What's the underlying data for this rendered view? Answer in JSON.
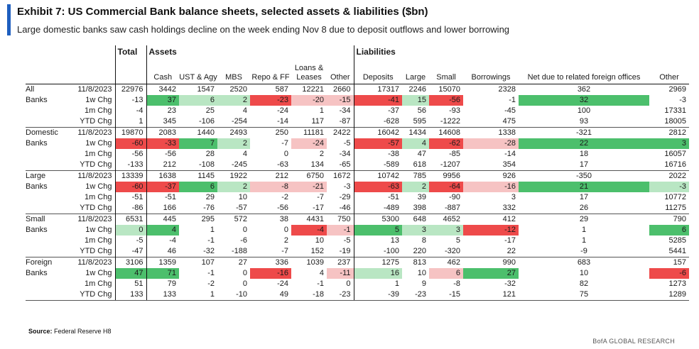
{
  "title": "Exhibit 7: US Commercial Bank balance sheets, selected assets & liabilities ($bn)",
  "subtitle": "Large domestic banks saw cash holdings decline on the week ending Nov 8 due to deposit outflows and lower borrowing",
  "headers": {
    "total": "Total",
    "assets": "Assets",
    "liabilities": "Liabilities",
    "columns": [
      "Cash",
      "UST & Agy",
      "MBS",
      "Repo & FF",
      "Loans & Leases",
      "Other",
      "Deposits",
      "Large",
      "Small",
      "Borrowings",
      "Net due to related foreign offices",
      "Other"
    ]
  },
  "colors": {
    "green_strong": "#4cbf6c",
    "green_light": "#b9e6c3",
    "red_strong": "#ee4a4a",
    "red_light": "#f6c3c3",
    "accent_bar": "#1f5fbf"
  },
  "groups": [
    {
      "label_line1": "All",
      "label_line2": "Banks",
      "rows": [
        {
          "label": "11/8/2023",
          "values": [
            "22976",
            "3442",
            "1547",
            "2520",
            "587",
            "12221",
            "2660",
            "17317",
            "2246",
            "15070",
            "2328",
            "362",
            "2969"
          ],
          "fills": [
            "",
            "",
            "",
            "",
            "",
            "",
            "",
            "",
            "",
            "",
            "",
            "",
            ""
          ]
        },
        {
          "label": "1w Chg",
          "values": [
            "-13",
            "37",
            "6",
            "2",
            "-23",
            "-20",
            "-15",
            "-41",
            "15",
            "-56",
            "-1",
            "32",
            "-3"
          ],
          "fills": [
            "",
            "gs",
            "gl",
            "gl",
            "rs",
            "rl",
            "rl",
            "rs",
            "gl",
            "rs",
            "",
            "gs",
            ""
          ]
        },
        {
          "label": "1m Chg",
          "values": [
            "-4",
            "23",
            "25",
            "4",
            "-24",
            "1",
            "-34",
            "-37",
            "56",
            "-93",
            "-45",
            "100",
            "17331"
          ],
          "fills": [
            "",
            "",
            "",
            "",
            "",
            "",
            "",
            "",
            "",
            "",
            "",
            "",
            ""
          ]
        },
        {
          "label": "YTD Chg",
          "values": [
            "1",
            "345",
            "-106",
            "-254",
            "-14",
            "117",
            "-87",
            "-628",
            "595",
            "-1222",
            "475",
            "93",
            "18005"
          ],
          "fills": [
            "",
            "",
            "",
            "",
            "",
            "",
            "",
            "",
            "",
            "",
            "",
            "",
            ""
          ]
        }
      ]
    },
    {
      "label_line1": "Domestic",
      "label_line2": "Banks",
      "rows": [
        {
          "label": "11/8/2023",
          "values": [
            "19870",
            "2083",
            "1440",
            "2493",
            "250",
            "11181",
            "2422",
            "16042",
            "1434",
            "14608",
            "1338",
            "-321",
            "2812"
          ],
          "fills": [
            "",
            "",
            "",
            "",
            "",
            "",
            "",
            "",
            "",
            "",
            "",
            "",
            ""
          ]
        },
        {
          "label": "1w Chg",
          "values": [
            "-60",
            "-33",
            "7",
            "2",
            "-7",
            "-24",
            "-5",
            "-57",
            "4",
            "-62",
            "-28",
            "22",
            "3"
          ],
          "fills": [
            "rs",
            "rs",
            "gs",
            "gl",
            "",
            "rl",
            "",
            "rs",
            "gl",
            "rs",
            "rl",
            "gs",
            "gs"
          ]
        },
        {
          "label": "1m Chg",
          "values": [
            "-56",
            "-56",
            "28",
            "4",
            "0",
            "2",
            "-34",
            "-38",
            "47",
            "-85",
            "-14",
            "18",
            "16057"
          ],
          "fills": [
            "",
            "",
            "",
            "",
            "",
            "",
            "",
            "",
            "",
            "",
            "",
            "",
            ""
          ]
        },
        {
          "label": "YTD Chg",
          "values": [
            "-133",
            "212",
            "-108",
            "-245",
            "-63",
            "134",
            "-65",
            "-589",
            "618",
            "-1207",
            "354",
            "17",
            "16716"
          ],
          "fills": [
            "",
            "",
            "",
            "",
            "",
            "",
            "",
            "",
            "",
            "",
            "",
            "",
            ""
          ]
        }
      ]
    },
    {
      "label_line1": "Large",
      "label_line2": "Banks",
      "rows": [
        {
          "label": "11/8/2023",
          "values": [
            "13339",
            "1638",
            "1145",
            "1922",
            "212",
            "6750",
            "1672",
            "10742",
            "785",
            "9956",
            "926",
            "-350",
            "2022"
          ],
          "fills": [
            "",
            "",
            "",
            "",
            "",
            "",
            "",
            "",
            "",
            "",
            "",
            "",
            ""
          ]
        },
        {
          "label": "1w Chg",
          "values": [
            "-60",
            "-37",
            "6",
            "2",
            "-8",
            "-21",
            "-3",
            "-63",
            "2",
            "-64",
            "-16",
            "21",
            "-3"
          ],
          "fills": [
            "rs",
            "rs",
            "gs",
            "gl",
            "rl",
            "rl",
            "",
            "rs",
            "gl",
            "rs",
            "rl",
            "gs",
            "gl"
          ]
        },
        {
          "label": "1m Chg",
          "values": [
            "-51",
            "-51",
            "29",
            "10",
            "-2",
            "-7",
            "-29",
            "-51",
            "39",
            "-90",
            "3",
            "17",
            "10772"
          ],
          "fills": [
            "",
            "",
            "",
            "",
            "",
            "",
            "",
            "",
            "",
            "",
            "",
            "",
            ""
          ]
        },
        {
          "label": "YTD Chg",
          "values": [
            "-86",
            "166",
            "-76",
            "-57",
            "-56",
            "-17",
            "-46",
            "-489",
            "398",
            "-887",
            "332",
            "26",
            "11275"
          ],
          "fills": [
            "",
            "",
            "",
            "",
            "",
            "",
            "",
            "",
            "",
            "",
            "",
            "",
            ""
          ]
        }
      ]
    },
    {
      "label_line1": "Small",
      "label_line2": "Banks",
      "rows": [
        {
          "label": "11/8/2023",
          "values": [
            "6531",
            "445",
            "295",
            "572",
            "38",
            "4431",
            "750",
            "5300",
            "648",
            "4652",
            "412",
            "29",
            "790"
          ],
          "fills": [
            "",
            "",
            "",
            "",
            "",
            "",
            "",
            "",
            "",
            "",
            "",
            "",
            ""
          ]
        },
        {
          "label": "1w Chg",
          "values": [
            "0",
            "4",
            "1",
            "0",
            "0",
            "-4",
            "-1",
            "5",
            "3",
            "3",
            "-12",
            "1",
            "6"
          ],
          "fills": [
            "gl",
            "gs",
            "",
            "",
            "",
            "rs",
            "rl",
            "gs",
            "gl",
            "gl",
            "rs",
            "",
            "gs"
          ]
        },
        {
          "label": "1m Chg",
          "values": [
            "-5",
            "-4",
            "-1",
            "-6",
            "2",
            "10",
            "-5",
            "13",
            "8",
            "5",
            "-17",
            "1",
            "5285"
          ],
          "fills": [
            "",
            "",
            "",
            "",
            "",
            "",
            "",
            "",
            "",
            "",
            "",
            "",
            ""
          ]
        },
        {
          "label": "YTD Chg",
          "values": [
            "-47",
            "46",
            "-32",
            "-188",
            "-7",
            "152",
            "-19",
            "-100",
            "220",
            "-320",
            "22",
            "-9",
            "5441"
          ],
          "fills": [
            "",
            "",
            "",
            "",
            "",
            "",
            "",
            "",
            "",
            "",
            "",
            "",
            ""
          ]
        }
      ]
    },
    {
      "label_line1": "Foreign",
      "label_line2": "Banks",
      "rows": [
        {
          "label": "11/8/2023",
          "values": [
            "3106",
            "1359",
            "107",
            "27",
            "336",
            "1039",
            "237",
            "1275",
            "813",
            "462",
            "990",
            "683",
            "157"
          ],
          "fills": [
            "",
            "",
            "",
            "",
            "",
            "",
            "",
            "",
            "",
            "",
            "",
            "",
            ""
          ]
        },
        {
          "label": "1w Chg",
          "values": [
            "47",
            "71",
            "-1",
            "0",
            "-16",
            "4",
            "-11",
            "16",
            "10",
            "6",
            "27",
            "10",
            "-6"
          ],
          "fills": [
            "gs",
            "gs",
            "",
            "",
            "rs",
            "",
            "rl",
            "gl",
            "",
            "rl",
            "gs",
            "",
            "rs"
          ]
        },
        {
          "label": "1m Chg",
          "values": [
            "51",
            "79",
            "-2",
            "0",
            "-24",
            "-1",
            "0",
            "1",
            "9",
            "-8",
            "-32",
            "82",
            "1273"
          ],
          "fills": [
            "",
            "",
            "",
            "",
            "",
            "",
            "",
            "",
            "",
            "",
            "",
            "",
            ""
          ]
        },
        {
          "label": "YTD Chg",
          "values": [
            "133",
            "133",
            "1",
            "-10",
            "49",
            "-18",
            "-23",
            "-39",
            "-23",
            "-15",
            "121",
            "75",
            "1289"
          ],
          "fills": [
            "",
            "",
            "",
            "",
            "",
            "",
            "",
            "",
            "",
            "",
            "",
            "",
            ""
          ]
        }
      ]
    }
  ],
  "source": {
    "label": "Source:",
    "text": "Federal Reserve H8"
  },
  "brand": "BofA GLOBAL RESEARCH"
}
